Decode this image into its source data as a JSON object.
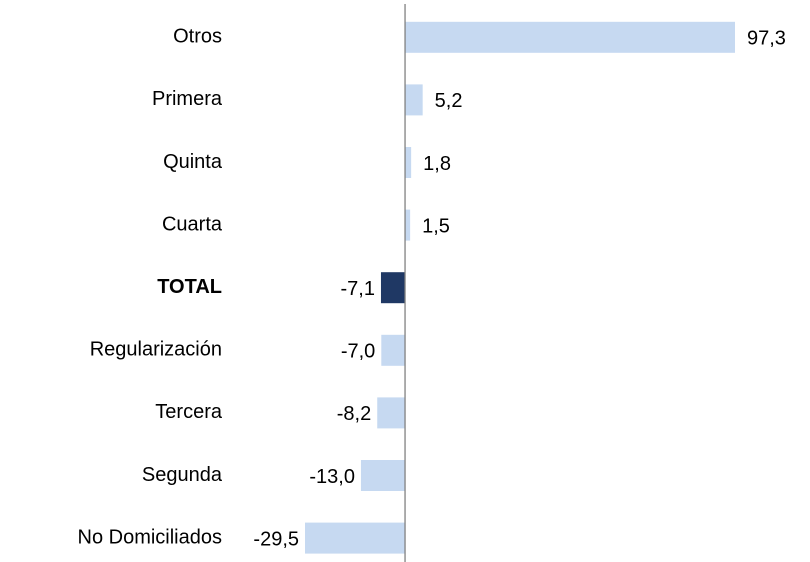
{
  "chart_data": {
    "type": "bar",
    "orientation": "horizontal",
    "categories": [
      "Otros",
      "Primera",
      "Quinta",
      "Cuarta",
      "TOTAL",
      "Regularización",
      "Tercera",
      "Segunda",
      "No Domiciliados"
    ],
    "values": [
      97.3,
      5.2,
      1.8,
      1.5,
      -7.1,
      -7.0,
      -8.2,
      -13.0,
      -29.5
    ],
    "value_labels": [
      "97,3",
      "5,2",
      "1,8",
      "1,5",
      "-7,1",
      "-7,0",
      "-8,2",
      "-13,0",
      "-29,5"
    ],
    "color": "#c6d9f1",
    "highlight": {
      "index": 4,
      "color": "#1f3864"
    }
  }
}
